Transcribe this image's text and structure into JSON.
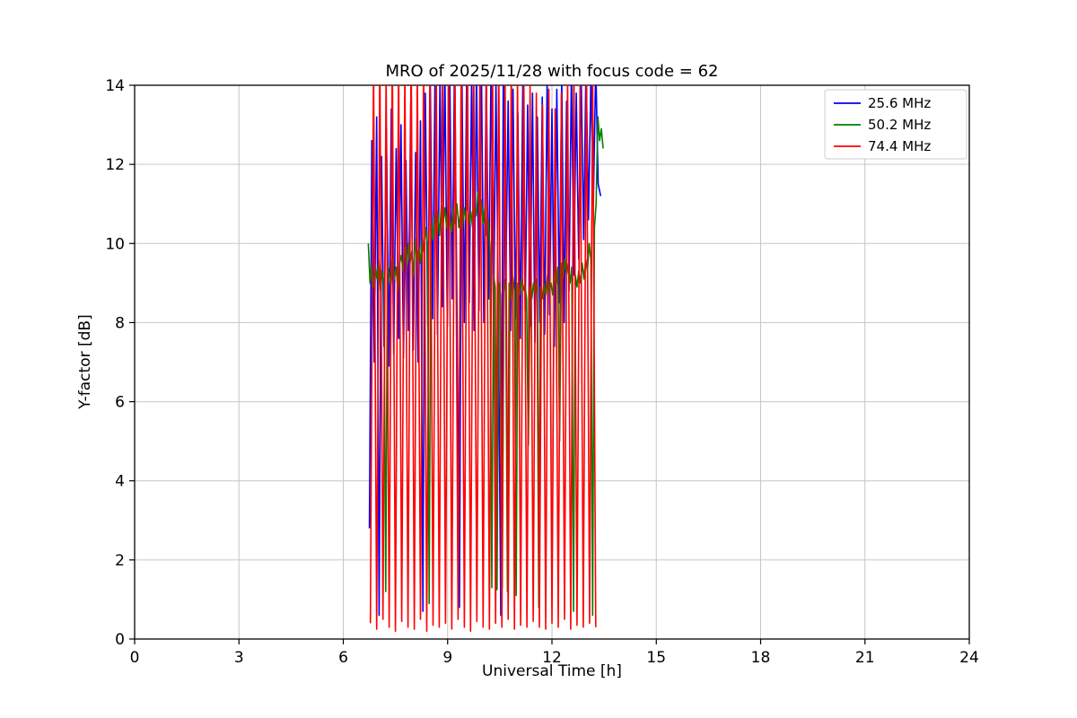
{
  "chart_data": {
    "type": "line",
    "title": "MRO of 2025/11/28 with focus code = 62",
    "xlabel": "Universal Time [h]",
    "ylabel": "Y-factor [dB]",
    "xlim": [
      0,
      24
    ],
    "ylim": [
      0,
      14
    ],
    "xticks": [
      0,
      3,
      6,
      9,
      12,
      15,
      18,
      21,
      24
    ],
    "yticks": [
      0,
      2,
      4,
      6,
      8,
      10,
      12,
      14
    ],
    "grid": true,
    "grid_color": "#c6c6c6",
    "legend_position": "upper right",
    "series": [
      {
        "name": "25.6 MHz",
        "color": "#0000ff",
        "x0": 6.75,
        "dx": 0.07,
        "y": [
          2.8,
          12.6,
          7.0,
          13.2,
          0.6,
          12.2,
          7.4,
          12.9,
          6.9,
          13.4,
          7.2,
          12.4,
          7.6,
          13.0,
          7.1,
          12.1,
          7.8,
          13.6,
          7.3,
          12.3,
          7.0,
          13.1,
          0.7,
          13.8,
          7.9,
          14.2,
          8.1,
          14.5,
          7.7,
          14.1,
          8.4,
          14.6,
          7.9,
          14.3,
          8.6,
          14.7,
          8.2,
          0.8,
          14.4,
          8.0,
          14.6,
          8.5,
          14.2,
          7.8,
          14.5,
          8.3,
          14.7,
          8.0,
          14.3,
          8.6,
          14.6,
          7.9,
          14.1,
          8.2,
          0.6,
          14.4,
          8.8,
          13.6,
          7.8,
          13.9,
          8.1,
          13.3,
          7.6,
          14.0,
          8.3,
          13.5,
          7.9,
          13.8,
          7.5,
          13.2,
          8.0,
          13.7,
          7.7,
          14.1,
          8.2,
          13.4,
          7.4,
          13.9,
          8.5,
          14.2,
          8.0,
          13.6,
          8.8,
          14.4,
          9.2,
          13.8,
          9.6,
          14.3,
          10.1,
          14.6,
          10.6,
          14.2,
          11.0,
          14.5,
          11.5,
          11.2
        ]
      },
      {
        "name": "50.2 MHz",
        "color": "#008000",
        "x0": 6.72,
        "dx": 0.05,
        "y": [
          10.0,
          9.0,
          9.5,
          8.9,
          9.4,
          9.1,
          9.6,
          8.8,
          9.3,
          9.0,
          1.2,
          9.5,
          9.2,
          8.9,
          9.6,
          9.1,
          9.4,
          8.8,
          9.5,
          9.7,
          9.3,
          9.9,
          9.4,
          10.0,
          9.5,
          9.8,
          9.2,
          10.1,
          9.6,
          9.9,
          9.5,
          10.2,
          9.8,
          10.4,
          10.0,
          0.9,
          10.5,
          10.1,
          10.7,
          10.3,
          10.8,
          10.2,
          11.0,
          10.5,
          10.9,
          10.4,
          11.1,
          10.6,
          10.3,
          10.9,
          10.5,
          11.0,
          10.4,
          10.8,
          10.3,
          10.9,
          10.6,
          11.1,
          10.5,
          10.8,
          10.4,
          11.0,
          10.7,
          11.3,
          10.8,
          11.1,
          10.5,
          10.9,
          10.2,
          10.6,
          9.8,
          1.3,
          9.2,
          8.9,
          1.25,
          9.0,
          8.7,
          1.3,
          9.1,
          8.8,
          1.2,
          9.0,
          8.6,
          9.2,
          8.8,
          1.1,
          9.0,
          8.7,
          9.1,
          8.8,
          9.0,
          8.6,
          4.9,
          8.9,
          8.6,
          9.0,
          8.7,
          9.1,
          0.8,
          8.9,
          8.6,
          9.0,
          8.7,
          9.2,
          8.8,
          9.0,
          8.7,
          9.3,
          8.9,
          9.4,
          5.0,
          9.5,
          9.1,
          9.6,
          9.2,
          9.5,
          9.0,
          9.4,
          0.7,
          9.2,
          8.9,
          9.3,
          9.0,
          9.5,
          9.1,
          9.6,
          9.3,
          10.0,
          9.6,
          0.6,
          10.4,
          11.0,
          13.2,
          12.6,
          12.9,
          12.4
        ]
      },
      {
        "name": "74.4 MHz",
        "color": "#ff0000",
        "x0": 6.78,
        "dx": 0.09,
        "y": [
          0.4,
          14.6,
          0.25,
          14.9,
          0.5,
          14.4,
          0.3,
          15.0,
          0.2,
          14.7,
          0.45,
          14.5,
          0.3,
          15.1,
          0.25,
          14.6,
          0.5,
          14.8,
          0.2,
          14.5,
          0.35,
          15.0,
          0.3,
          14.7,
          0.4,
          14.9,
          0.25,
          14.6,
          0.5,
          14.8,
          0.3,
          15.2,
          0.2,
          14.5,
          0.45,
          14.9,
          0.3,
          14.6,
          0.25,
          15.0,
          0.4,
          14.7,
          0.3,
          14.4,
          0.5,
          14.8,
          0.25,
          14.2,
          0.35,
          14.5,
          0.3,
          14.0,
          0.45,
          13.8,
          0.3,
          13.5,
          0.25,
          13.9,
          0.4,
          13.4,
          0.3,
          13.8,
          0.5,
          14.3,
          0.25,
          14.6,
          0.35,
          14.2,
          0.3,
          14.7,
          0.4,
          14.4,
          0.3
        ]
      }
    ]
  }
}
